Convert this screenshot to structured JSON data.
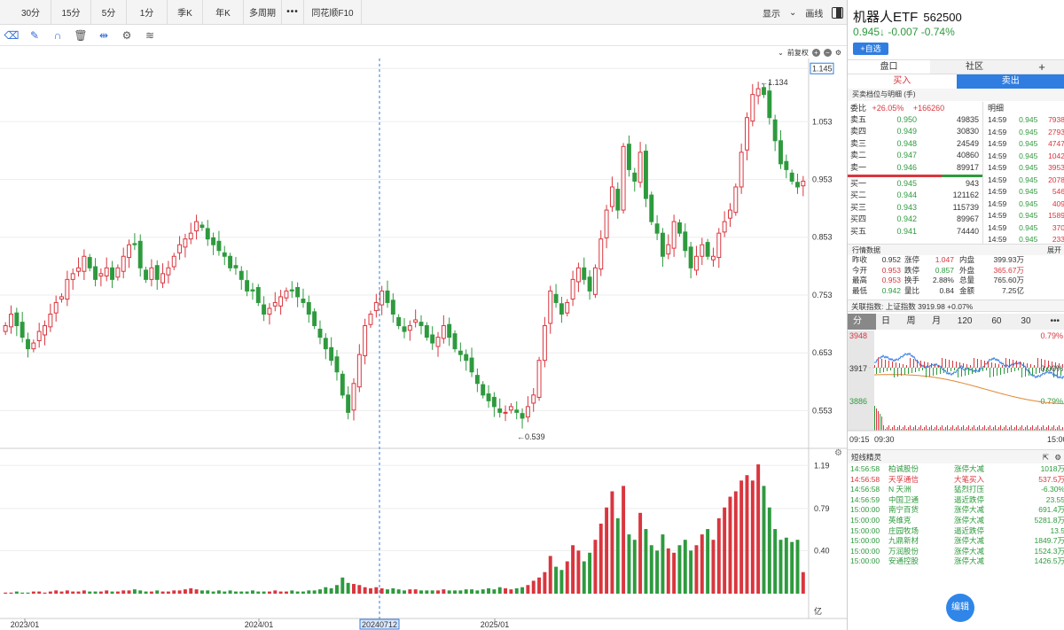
{
  "top_bar": {
    "periods": [
      "30分",
      "15分",
      "5分",
      "1分",
      "季K",
      "年K",
      "多周期",
      "•••",
      "同花顺F10"
    ],
    "display_label": "显示",
    "draw_label": "画线"
  },
  "sub_bar": {
    "adjust_label": "前复权"
  },
  "chart_data": {
    "type": "candlestick",
    "x_tick_labels": [
      "2023/01",
      "2024/01",
      "20240712",
      "2025/01"
    ],
    "price_ticks": [
      "1.145",
      "1.053",
      "0.953",
      "0.853",
      "0.753",
      "0.653",
      "0.553"
    ],
    "volume_ticks": [
      "1.19",
      "0.79",
      "0.40"
    ],
    "volume_unit": "亿",
    "high_marker": "1.134",
    "low_marker": "0.539",
    "up_color": "#d9363e",
    "down_color": "#2e9a3e",
    "price_range": [
      0.5,
      1.15
    ],
    "volume_range": [
      0,
      1.25
    ],
    "closes": [
      0.7,
      0.72,
      0.7,
      0.68,
      0.66,
      0.67,
      0.69,
      0.7,
      0.72,
      0.74,
      0.75,
      0.78,
      0.79,
      0.8,
      0.82,
      0.8,
      0.78,
      0.79,
      0.8,
      0.78,
      0.8,
      0.82,
      0.84,
      0.84,
      0.8,
      0.78,
      0.8,
      0.78,
      0.79,
      0.8,
      0.82,
      0.84,
      0.85,
      0.86,
      0.88,
      0.87,
      0.85,
      0.84,
      0.83,
      0.82,
      0.8,
      0.8,
      0.78,
      0.76,
      0.76,
      0.74,
      0.72,
      0.73,
      0.74,
      0.75,
      0.76,
      0.76,
      0.75,
      0.74,
      0.72,
      0.7,
      0.68,
      0.66,
      0.64,
      0.62,
      0.58,
      0.55,
      0.6,
      0.65,
      0.7,
      0.72,
      0.74,
      0.76,
      0.74,
      0.72,
      0.7,
      0.69,
      0.7,
      0.71,
      0.7,
      0.68,
      0.67,
      0.68,
      0.7,
      0.68,
      0.66,
      0.65,
      0.64,
      0.62,
      0.6,
      0.58,
      0.57,
      0.56,
      0.55,
      0.55,
      0.56,
      0.55,
      0.54,
      0.56,
      0.58,
      0.64,
      0.7,
      0.76,
      0.74,
      0.72,
      0.74,
      0.78,
      0.8,
      0.78,
      0.76,
      0.8,
      0.85,
      0.9,
      0.94,
      0.9,
      1.01,
      0.97,
      0.95,
      1.0,
      0.92,
      0.88,
      0.86,
      0.82,
      0.84,
      0.88,
      0.86,
      0.83,
      0.8,
      0.82,
      0.84,
      0.82,
      0.82,
      0.86,
      0.88,
      0.9,
      0.94,
      1.0,
      1.06,
      1.1,
      1.11,
      1.1,
      1.06,
      1.02,
      0.98,
      0.97,
      0.95,
      0.94,
      0.95
    ],
    "volumes": [
      0.01,
      0.01,
      0.02,
      0.01,
      0.01,
      0.02,
      0.02,
      0.01,
      0.02,
      0.03,
      0.02,
      0.03,
      0.02,
      0.02,
      0.03,
      0.02,
      0.02,
      0.02,
      0.03,
      0.02,
      0.02,
      0.03,
      0.03,
      0.04,
      0.03,
      0.02,
      0.02,
      0.03,
      0.02,
      0.02,
      0.03,
      0.03,
      0.04,
      0.05,
      0.04,
      0.03,
      0.03,
      0.02,
      0.03,
      0.02,
      0.03,
      0.02,
      0.02,
      0.02,
      0.03,
      0.02,
      0.02,
      0.02,
      0.03,
      0.02,
      0.02,
      0.03,
      0.02,
      0.02,
      0.03,
      0.03,
      0.04,
      0.06,
      0.05,
      0.08,
      0.15,
      0.1,
      0.09,
      0.08,
      0.06,
      0.05,
      0.06,
      0.05,
      0.04,
      0.05,
      0.04,
      0.03,
      0.04,
      0.04,
      0.03,
      0.03,
      0.03,
      0.03,
      0.04,
      0.03,
      0.03,
      0.03,
      0.04,
      0.04,
      0.03,
      0.04,
      0.05,
      0.04,
      0.06,
      0.05,
      0.04,
      0.05,
      0.06,
      0.08,
      0.12,
      0.15,
      0.2,
      0.35,
      0.25,
      0.22,
      0.3,
      0.45,
      0.4,
      0.3,
      0.38,
      0.5,
      0.65,
      0.8,
      0.95,
      0.7,
      1.0,
      0.55,
      0.5,
      0.75,
      0.6,
      0.45,
      0.4,
      0.55,
      0.42,
      0.38,
      0.45,
      0.5,
      0.4,
      0.45,
      0.55,
      0.6,
      0.5,
      0.7,
      0.8,
      0.9,
      0.95,
      1.05,
      1.1,
      1.05,
      1.2,
      1.0,
      0.8,
      0.6,
      0.5,
      0.52,
      0.48,
      0.5,
      0.2
    ]
  },
  "right_panel": {
    "name": "机器人ETF",
    "code": "562500",
    "price_line": "0.945↓ -0.007 -0.74%",
    "add_label": "+自选",
    "tabs": [
      "盘口",
      "社区",
      "+"
    ],
    "buy_tab": "买入",
    "sell_tab": "卖出",
    "detail_header": "买卖档位与明细 (手)",
    "ratio_label": "委比",
    "ratio_pct": "+26.05%",
    "ratio_diff": "+166260",
    "detail_title": "明细",
    "sell_levels": [
      {
        "label": "卖五",
        "price": "0.950",
        "vol": "49835"
      },
      {
        "label": "卖四",
        "price": "0.949",
        "vol": "30830"
      },
      {
        "label": "卖三",
        "price": "0.948",
        "vol": "24549"
      },
      {
        "label": "卖二",
        "price": "0.947",
        "vol": "40860"
      },
      {
        "label": "卖一",
        "price": "0.946",
        "vol": "89917"
      }
    ],
    "buy_levels": [
      {
        "label": "买一",
        "price": "0.945",
        "vol": "943"
      },
      {
        "label": "买二",
        "price": "0.944",
        "vol": "121162"
      },
      {
        "label": "买三",
        "price": "0.943",
        "vol": "115739"
      },
      {
        "label": "买四",
        "price": "0.942",
        "vol": "89967"
      },
      {
        "label": "买五",
        "price": "0.941",
        "vol": "74440"
      }
    ],
    "trades": [
      {
        "t": "14:59",
        "p": "0.945",
        "v": "7938"
      },
      {
        "t": "14:59",
        "p": "0.945",
        "v": "2793"
      },
      {
        "t": "14:59",
        "p": "0.945",
        "v": "4747"
      },
      {
        "t": "14:59",
        "p": "0.945",
        "v": "1042"
      },
      {
        "t": "14:59",
        "p": "0.945",
        "v": "3953"
      },
      {
        "t": "14:59",
        "p": "0.945",
        "v": "2078"
      },
      {
        "t": "14:59",
        "p": "0.945",
        "v": "546"
      },
      {
        "t": "14:59",
        "p": "0.945",
        "v": "409"
      },
      {
        "t": "14:59",
        "p": "0.945",
        "v": "1589"
      },
      {
        "t": "14:59",
        "p": "0.945",
        "v": "370"
      },
      {
        "t": "14:59",
        "p": "0.945",
        "v": "233"
      }
    ],
    "quote_header": "行情数据",
    "expand_label": "展开",
    "quotes": [
      [
        "昨收",
        "0.952",
        "涨停",
        "1.047",
        "内盘",
        "399.93万"
      ],
      [
        "今开",
        "0.953",
        "跌停",
        "0.857",
        "外盘",
        "365.67万"
      ],
      [
        "最高",
        "0.953",
        "换手",
        "2.88%",
        "总量",
        "765.60万"
      ],
      [
        "最低",
        "0.942",
        "量比",
        "0.84",
        "金额",
        "7.25亿"
      ]
    ],
    "index_line": "关联指数:  上证指数  3919.98 +0.07%",
    "period_tabs": [
      "分时",
      "日K",
      "周K",
      "月K",
      "120分",
      "60分",
      "30分",
      "•••"
    ],
    "mini_top": "3948",
    "mini_mid": "3917",
    "mini_bot": "3886",
    "mini_top_pct": "0.79%",
    "mini_mid_pct": "0.00%",
    "mini_bot_pct": "-0.79%",
    "mini_times": [
      "09:15",
      "09:30",
      "15:00"
    ],
    "spirit_header": "短线精灵",
    "spirits": [
      {
        "t": "14:56:58",
        "n": "柏诚股份",
        "e": "涨停大减",
        "v": "1018万",
        "c": "green"
      },
      {
        "t": "14:56:58",
        "n": "天孚通信",
        "e": "大笔买入",
        "v": "537.5万",
        "c": "red"
      },
      {
        "t": "14:56:58",
        "n": "N 天洲",
        "e": "猛烈打压",
        "v": "-6.30%",
        "c": "green"
      },
      {
        "t": "14:56:59",
        "n": "中国卫通",
        "e": "逼近跌停",
        "v": "23.55",
        "c": "green"
      },
      {
        "t": "15:00:00",
        "n": "南宁百货",
        "e": "涨停大减",
        "v": "691.4万",
        "c": "green"
      },
      {
        "t": "15:00:00",
        "n": "英维克",
        "e": "涨停大减",
        "v": "5281.8万",
        "c": "green"
      },
      {
        "t": "15:00:00",
        "n": "庄园牧场",
        "e": "逼近跌停",
        "v": "13.5",
        "c": "green"
      },
      {
        "t": "15:00:00",
        "n": "九鼎新材",
        "e": "涨停大减",
        "v": "1849.7万",
        "c": "green"
      },
      {
        "t": "15:00:00",
        "n": "万润股份",
        "e": "涨停大减",
        "v": "1524.3万",
        "c": "green"
      },
      {
        "t": "15:00:00",
        "n": "安通控股",
        "e": "涨停大减",
        "v": "1426.5万",
        "c": "green"
      }
    ],
    "edit_label": "编辑"
  }
}
